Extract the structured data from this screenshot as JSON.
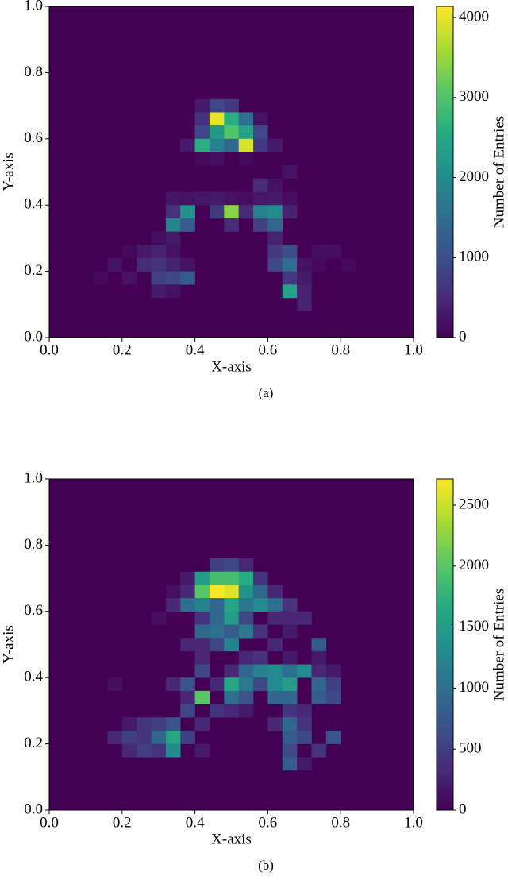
{
  "chart_data": [
    {
      "type": "histogram2d",
      "caption": "(a)",
      "xlabel": "X-axis",
      "ylabel": "Y-axis",
      "colorbar_label": "Number of Entries",
      "colormap": "viridis",
      "xlim": [
        0,
        1
      ],
      "ylim": [
        0,
        1
      ],
      "bin_size": 0.04,
      "xticks": [
        {
          "value": 0,
          "label": "0.0"
        },
        0.2,
        0.4,
        0.6,
        0.8,
        {
          "value": 1,
          "label": "1.0"
        }
      ],
      "yticks": [
        {
          "value": 0,
          "label": "0.0"
        },
        0.2,
        0.4,
        0.6,
        0.8,
        {
          "value": 1,
          "label": "1.0"
        }
      ],
      "clim": [
        0,
        4140
      ],
      "cticks": [
        0,
        1000,
        2000,
        3000,
        4000
      ],
      "cells": {
        "x": [
          0.4,
          0.44,
          0.48,
          0.4,
          0.44,
          0.48,
          0.52,
          0.56,
          0.4,
          0.44,
          0.48,
          0.52,
          0.56,
          0.36,
          0.4,
          0.44,
          0.48,
          0.52,
          0.56,
          0.6,
          0.44,
          0.52,
          0.4,
          0.32,
          0.36,
          0.4,
          0.44,
          0.48,
          0.52,
          0.56,
          0.6,
          0.64,
          0.56,
          0.6,
          0.64,
          0.32,
          0.36,
          0.44,
          0.48,
          0.52,
          0.56,
          0.6,
          0.64,
          0.32,
          0.36,
          0.48,
          0.56,
          0.6,
          0.28,
          0.32,
          0.6,
          0.2,
          0.24,
          0.28,
          0.32,
          0.6,
          0.64,
          0.72,
          0.76,
          0.16,
          0.24,
          0.28,
          0.32,
          0.36,
          0.6,
          0.64,
          0.68,
          0.72,
          0.8,
          0.12,
          0.2,
          0.28,
          0.32,
          0.36,
          0.64,
          0.68,
          0.28,
          0.32,
          0.64,
          0.68,
          0.68
        ],
        "y": [
          0.68,
          0.68,
          0.68,
          0.64,
          0.64,
          0.64,
          0.64,
          0.64,
          0.6,
          0.6,
          0.6,
          0.6,
          0.6,
          0.56,
          0.56,
          0.56,
          0.56,
          0.56,
          0.56,
          0.56,
          0.52,
          0.52,
          0.52,
          0.4,
          0.4,
          0.4,
          0.4,
          0.4,
          0.4,
          0.4,
          0.4,
          0.4,
          0.44,
          0.44,
          0.48,
          0.36,
          0.36,
          0.36,
          0.36,
          0.36,
          0.36,
          0.36,
          0.36,
          0.32,
          0.32,
          0.32,
          0.32,
          0.32,
          0.28,
          0.28,
          0.28,
          0.24,
          0.24,
          0.24,
          0.24,
          0.24,
          0.24,
          0.24,
          0.24,
          0.2,
          0.2,
          0.2,
          0.2,
          0.2,
          0.2,
          0.2,
          0.2,
          0.2,
          0.2,
          0.16,
          0.16,
          0.16,
          0.16,
          0.16,
          0.16,
          0.16,
          0.12,
          0.12,
          0.12,
          0.12,
          0.08
        ],
        "values": [
          300,
          900,
          700,
          600,
          4000,
          2600,
          1500,
          200,
          900,
          2200,
          3000,
          2400,
          900,
          300,
          2600,
          1800,
          1400,
          3900,
          700,
          300,
          150,
          100,
          100,
          250,
          200,
          250,
          300,
          200,
          150,
          250,
          300,
          150,
          500,
          200,
          200,
          600,
          2100,
          700,
          3400,
          500,
          1800,
          2000,
          400,
          1900,
          1200,
          500,
          800,
          1400,
          150,
          300,
          400,
          100,
          300,
          400,
          200,
          700,
          1000,
          150,
          150,
          200,
          500,
          600,
          400,
          200,
          900,
          1500,
          200,
          100,
          100,
          100,
          200,
          800,
          900,
          1200,
          700,
          300,
          300,
          200,
          2400,
          400,
          400
        ]
      }
    },
    {
      "type": "histogram2d",
      "caption": "(b)",
      "xlabel": "X-axis",
      "ylabel": "Y-axis",
      "colorbar_label": "Number of Entries",
      "colormap": "viridis",
      "xlim": [
        0,
        1
      ],
      "ylim": [
        0,
        1
      ],
      "bin_size": 0.04,
      "xticks": [
        {
          "value": 0,
          "label": "0.0"
        },
        0.2,
        0.4,
        0.6,
        0.8,
        {
          "value": 1,
          "label": "1.0"
        }
      ],
      "yticks": [
        {
          "value": 0,
          "label": "0.0"
        },
        0.2,
        0.4,
        0.6,
        0.8,
        {
          "value": 1,
          "label": "1.0"
        }
      ],
      "clim": [
        0,
        2715
      ],
      "cticks": [
        0,
        500,
        1000,
        1500,
        2000,
        2500
      ],
      "cells": {
        "x": [
          0.44,
          0.48,
          0.52,
          0.36,
          0.4,
          0.44,
          0.48,
          0.52,
          0.56,
          0.32,
          0.36,
          0.4,
          0.44,
          0.48,
          0.52,
          0.56,
          0.6,
          0.32,
          0.36,
          0.4,
          0.44,
          0.48,
          0.52,
          0.56,
          0.6,
          0.64,
          0.28,
          0.4,
          0.44,
          0.48,
          0.52,
          0.6,
          0.64,
          0.68,
          0.4,
          0.44,
          0.48,
          0.52,
          0.56,
          0.64,
          0.36,
          0.4,
          0.44,
          0.48,
          0.6,
          0.72,
          0.4,
          0.52,
          0.56,
          0.64,
          0.72,
          0.4,
          0.48,
          0.52,
          0.56,
          0.6,
          0.64,
          0.68,
          0.72,
          0.76,
          0.16,
          0.32,
          0.36,
          0.44,
          0.48,
          0.52,
          0.56,
          0.6,
          0.64,
          0.72,
          0.76,
          0.36,
          0.4,
          0.48,
          0.52,
          0.6,
          0.64,
          0.72,
          0.76,
          0.36,
          0.44,
          0.48,
          0.52,
          0.64,
          0.68,
          0.2,
          0.24,
          0.28,
          0.32,
          0.4,
          0.6,
          0.64,
          0.68,
          0.16,
          0.2,
          0.24,
          0.28,
          0.32,
          0.36,
          0.64,
          0.68,
          0.76,
          0.2,
          0.24,
          0.28,
          0.32,
          0.4,
          0.64,
          0.72,
          0.64,
          0.68
        ],
        "y": [
          0.72,
          0.72,
          0.72,
          0.68,
          0.68,
          0.68,
          0.68,
          0.68,
          0.68,
          0.64,
          0.64,
          0.64,
          0.64,
          0.64,
          0.64,
          0.64,
          0.64,
          0.6,
          0.6,
          0.6,
          0.6,
          0.6,
          0.6,
          0.6,
          0.6,
          0.6,
          0.56,
          0.56,
          0.56,
          0.56,
          0.56,
          0.56,
          0.56,
          0.56,
          0.52,
          0.52,
          0.52,
          0.52,
          0.52,
          0.52,
          0.48,
          0.48,
          0.48,
          0.48,
          0.48,
          0.48,
          0.44,
          0.44,
          0.44,
          0.44,
          0.44,
          0.4,
          0.4,
          0.4,
          0.4,
          0.4,
          0.4,
          0.4,
          0.4,
          0.4,
          0.36,
          0.36,
          0.36,
          0.36,
          0.36,
          0.36,
          0.36,
          0.36,
          0.36,
          0.36,
          0.36,
          0.32,
          0.32,
          0.32,
          0.32,
          0.32,
          0.32,
          0.32,
          0.32,
          0.28,
          0.28,
          0.28,
          0.28,
          0.28,
          0.28,
          0.24,
          0.24,
          0.24,
          0.24,
          0.24,
          0.24,
          0.24,
          0.24,
          0.2,
          0.2,
          0.2,
          0.2,
          0.2,
          0.2,
          0.2,
          0.2,
          0.2,
          0.16,
          0.16,
          0.16,
          0.16,
          0.16,
          0.16,
          0.16,
          0.12,
          0.12
        ],
        "values": [
          500,
          600,
          300,
          200,
          1500,
          1900,
          1900,
          1700,
          400,
          100,
          300,
          2000,
          2700,
          2600,
          1400,
          900,
          300,
          300,
          1000,
          1200,
          900,
          1600,
          1100,
          1300,
          1000,
          400,
          100,
          400,
          900,
          1500,
          600,
          300,
          300,
          300,
          900,
          1000,
          800,
          1100,
          400,
          200,
          300,
          300,
          600,
          1200,
          300,
          800,
          300,
          300,
          400,
          200,
          200,
          600,
          300,
          900,
          1200,
          1300,
          1000,
          1300,
          300,
          200,
          100,
          300,
          700,
          300,
          1600,
          1100,
          600,
          1300,
          1500,
          900,
          500,
          300,
          2000,
          1000,
          700,
          900,
          900,
          800,
          600,
          600,
          400,
          300,
          200,
          400,
          300,
          200,
          400,
          500,
          700,
          300,
          300,
          900,
          400,
          300,
          500,
          400,
          900,
          1600,
          500,
          800,
          600,
          700,
          300,
          500,
          400,
          1300,
          200,
          600,
          400,
          800,
          200
        ]
      }
    }
  ]
}
